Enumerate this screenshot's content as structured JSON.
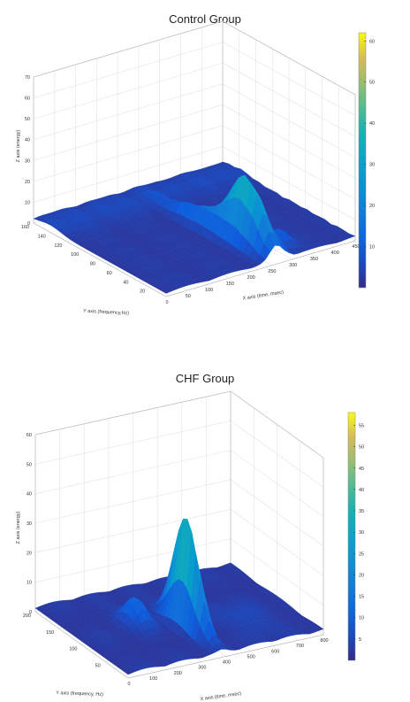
{
  "chart_data": [
    {
      "type": "surface",
      "title": "Control Group",
      "xlabel": "X axis (time, msec)",
      "ylabel": "Y axis (frequency,Hz)",
      "zlabel": "Z axis (energy)",
      "xlim": [
        0,
        450
      ],
      "ylim": [
        0,
        160
      ],
      "zlim": [
        0,
        70
      ],
      "x_ticks": [
        0,
        50,
        100,
        150,
        200,
        250,
        300,
        350,
        400,
        450
      ],
      "y_ticks": [
        20,
        40,
        60,
        80,
        100,
        120,
        140,
        160
      ],
      "z_ticks": [
        0,
        10,
        20,
        30,
        40,
        50,
        60,
        70
      ],
      "colorbar_ticks": [
        10,
        20,
        30,
        40,
        50,
        60
      ],
      "colorbar_range": [
        0,
        62
      ],
      "grid": true,
      "peak": {
        "x": 260,
        "y": 30,
        "z": 38
      }
    },
    {
      "type": "surface",
      "title": "CHF Group",
      "xlabel": "X axis (time, msec)",
      "ylabel": "Y axis (frequency, Hz)",
      "zlabel": "Z axis (energy)",
      "xlim": [
        0,
        800
      ],
      "ylim": [
        0,
        200
      ],
      "zlim": [
        0,
        60
      ],
      "x_ticks": [
        0,
        100,
        200,
        300,
        400,
        500,
        600,
        700,
        800
      ],
      "y_ticks": [
        50,
        100,
        150,
        200
      ],
      "z_ticks": [
        0,
        10,
        20,
        30,
        40,
        50,
        60
      ],
      "colorbar_ticks": [
        5,
        10,
        15,
        20,
        25,
        30,
        35,
        40,
        45,
        50,
        55
      ],
      "colorbar_range": [
        0,
        58
      ],
      "grid": true,
      "peak": {
        "x": 380,
        "y": 60,
        "z": 40
      }
    }
  ]
}
